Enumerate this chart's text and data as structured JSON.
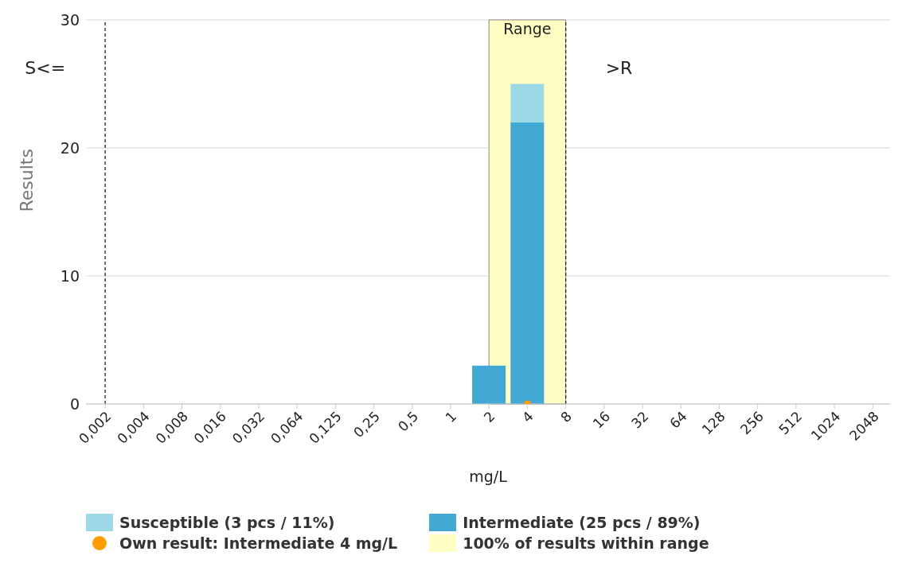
{
  "chart_data": {
    "type": "bar",
    "stacked": true,
    "ylabel": "Results",
    "xlabel": "mg/L",
    "categories": [
      "0,002",
      "0,004",
      "0,008",
      "0,016",
      "0,032",
      "0,064",
      "0,125",
      "0,25",
      "0,5",
      "1",
      "2",
      "4",
      "8",
      "16",
      "32",
      "64",
      "128",
      "256",
      "512",
      "1024",
      "2048"
    ],
    "series": [
      {
        "name": "Intermediate (25 pcs / 89%)",
        "color": "#42a9d5",
        "values": [
          0,
          0,
          0,
          0,
          0,
          0,
          0,
          0,
          0,
          0,
          3,
          22,
          0,
          0,
          0,
          0,
          0,
          0,
          0,
          0,
          0
        ]
      },
      {
        "name": "Susceptible (3 pcs / 11%)",
        "color": "#9cdae8",
        "values": [
          0,
          0,
          0,
          0,
          0,
          0,
          0,
          0,
          0,
          0,
          0,
          3,
          0,
          0,
          0,
          0,
          0,
          0,
          0,
          0,
          0
        ]
      },
      {
        "name": "Own result: Intermediate 4 mg/L",
        "type": "scatter",
        "color": "#ff9c00",
        "x": [
          "4"
        ],
        "values": [
          0
        ],
        "marker": "circle"
      }
    ],
    "ylim": [
      0,
      30
    ],
    "yticks": [
      0,
      10,
      20,
      30
    ],
    "grid": "y",
    "legend": "bottom",
    "bands": [
      {
        "axis": "x",
        "from": "2",
        "to": "8",
        "label": "Range",
        "color": "#ffffc4"
      }
    ],
    "ref_lines": [
      {
        "axis": "x",
        "value": "0,002",
        "label": "S<=",
        "line_style": "dashed"
      },
      {
        "axis": "x",
        "value": "8",
        "label": ">R",
        "line_style": "dashed"
      }
    ],
    "annotations": [
      "100% of results within range"
    ]
  }
}
